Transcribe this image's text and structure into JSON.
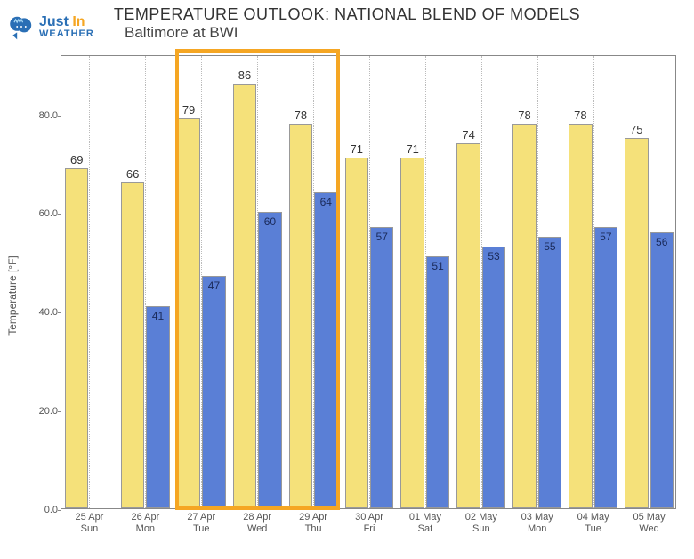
{
  "logo": {
    "line1_a": "Just",
    "line1_b": "In",
    "line2": "WEATHER"
  },
  "title": "TEMPERATURE OUTLOOK: NATIONAL BLEND OF MODELS",
  "subtitle": "Baltimore at BWI",
  "chart": {
    "type": "bar",
    "ylabel": "Temperature [°F]",
    "ylim_min": 0,
    "ylim_max": 92,
    "yticks": [
      0,
      20,
      40,
      60,
      80
    ],
    "bar_high_color": "#f5e17a",
    "bar_low_color": "#5a7fd6",
    "border_color": "#999999",
    "highlight_color": "#f5a623",
    "highlight_range": [
      2,
      4
    ],
    "days": [
      {
        "date": "25 Apr",
        "dow": "Sun",
        "high": 69,
        "low": null
      },
      {
        "date": "26 Apr",
        "dow": "Mon",
        "high": 66,
        "low": 41
      },
      {
        "date": "27 Apr",
        "dow": "Tue",
        "high": 79,
        "low": 47
      },
      {
        "date": "28 Apr",
        "dow": "Wed",
        "high": 86,
        "low": 60
      },
      {
        "date": "29 Apr",
        "dow": "Thu",
        "high": 78,
        "low": 64
      },
      {
        "date": "30 Apr",
        "dow": "Fri",
        "high": 71,
        "low": 57
      },
      {
        "date": "01 May",
        "dow": "Sat",
        "high": 71,
        "low": 51
      },
      {
        "date": "02 May",
        "dow": "Sun",
        "high": 74,
        "low": 53
      },
      {
        "date": "03 May",
        "dow": "Mon",
        "high": 78,
        "low": 55
      },
      {
        "date": "04 May",
        "dow": "Tue",
        "high": 78,
        "low": 57
      },
      {
        "date": "05 May",
        "dow": "Wed",
        "high": 75,
        "low": 56
      }
    ]
  }
}
